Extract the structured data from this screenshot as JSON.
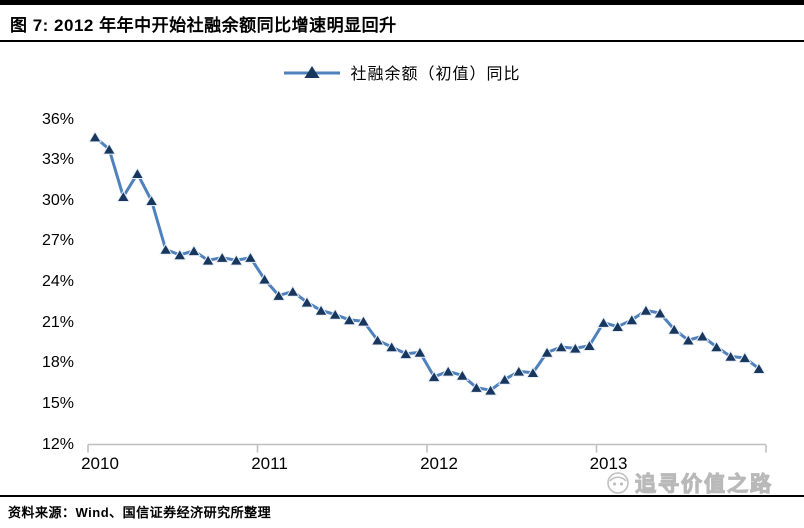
{
  "header": {
    "title": "图 7: 2012 年年中开始社融余额同比增速明显回升"
  },
  "legend": {
    "label": "社融余额（初值）同比"
  },
  "footer": {
    "source": "资料来源：Wind、国信证券经济研究所整理",
    "watermark": "追寻价值之路"
  },
  "colors": {
    "line": "#4f81bd",
    "marker": "#17375e",
    "marker_halo": "#e8eef7",
    "axis": "#bfbfbf",
    "watermark": "#b9b9b9"
  },
  "chart_data": {
    "type": "line",
    "title": "图 7: 2012 年年中开始社融余额同比增速明显回升",
    "x": [
      "2010-01",
      "2010-02",
      "2010-03",
      "2010-04",
      "2010-05",
      "2010-06",
      "2010-07",
      "2010-08",
      "2010-09",
      "2010-10",
      "2010-11",
      "2010-12",
      "2011-01",
      "2011-02",
      "2011-03",
      "2011-04",
      "2011-05",
      "2011-06",
      "2011-07",
      "2011-08",
      "2011-09",
      "2011-10",
      "2011-11",
      "2011-12",
      "2012-01",
      "2012-02",
      "2012-03",
      "2012-04",
      "2012-05",
      "2012-06",
      "2012-07",
      "2012-08",
      "2012-09",
      "2012-10",
      "2012-11",
      "2012-12",
      "2013-01",
      "2013-02",
      "2013-03",
      "2013-04",
      "2013-05",
      "2013-06",
      "2013-07",
      "2013-08",
      "2013-09",
      "2013-10",
      "2013-11",
      "2013-12"
    ],
    "series": [
      {
        "name": "社融余额（初值）同比",
        "values": [
          34.7,
          33.8,
          30.3,
          32.0,
          30.0,
          26.4,
          26.0,
          26.3,
          25.6,
          25.8,
          25.6,
          25.8,
          24.2,
          23.0,
          23.3,
          22.5,
          21.9,
          21.6,
          21.2,
          21.1,
          19.7,
          19.2,
          18.7,
          18.8,
          17.0,
          17.4,
          17.1,
          16.2,
          16.0,
          16.8,
          17.4,
          17.3,
          18.8,
          19.2,
          19.1,
          19.3,
          21.0,
          20.7,
          21.2,
          21.9,
          21.7,
          20.5,
          19.7,
          20.0,
          19.2,
          18.5,
          18.4,
          17.6
        ]
      }
    ],
    "ylim": [
      12,
      36
    ],
    "yticks": [
      36,
      33,
      30,
      27,
      24,
      21,
      18,
      15,
      12
    ],
    "ytick_suffix": "%",
    "xticks": [
      "2010",
      "2011",
      "2012",
      "2013"
    ],
    "xlabel": "",
    "ylabel": "",
    "grid": false,
    "legend_position": "top-center",
    "marker": "triangle-up"
  }
}
